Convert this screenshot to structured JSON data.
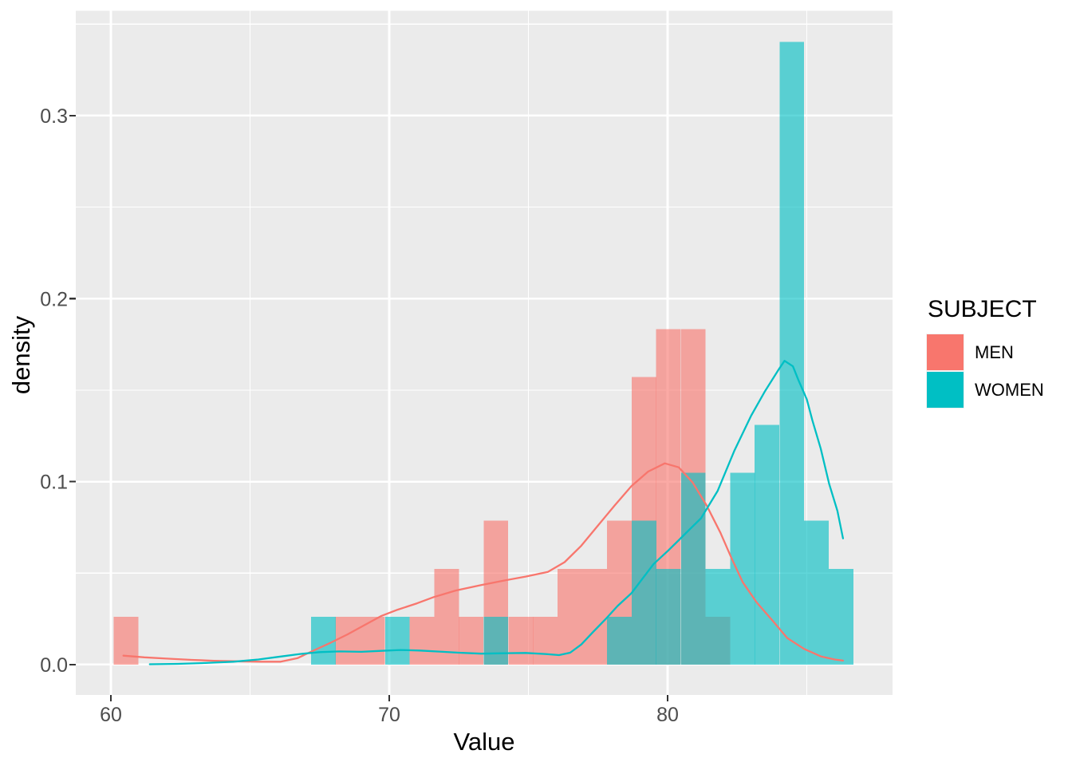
{
  "chart_data": {
    "type": "histogram+density",
    "xlabel": "Value",
    "ylabel": "density",
    "panel": {
      "bg": "#EBEBEB",
      "grid_color": "#FFFFFF",
      "tick_color": "#333333",
      "tick_label_color": "#4D4D4D"
    },
    "x_axis": {
      "range": [
        58.74,
        88.08
      ],
      "ticks": [
        60,
        70,
        80
      ],
      "tick_labels": [
        "60",
        "70",
        "80"
      ],
      "minor_ticks": [
        65,
        75,
        85
      ]
    },
    "y_axis": {
      "range": [
        -0.0166,
        0.3573
      ],
      "ticks": [
        0,
        0.1,
        0.2,
        0.3
      ],
      "tick_labels": [
        "0.0",
        "0.1",
        "0.2",
        "0.3"
      ],
      "minor_ticks": [
        0.05,
        0.15,
        0.25,
        0.35
      ]
    },
    "bin_width": 0.886,
    "fill_alpha": 0.62,
    "series": [
      {
        "name": "MEN",
        "color": "#F8766D",
        "bins": [
          {
            "start": 60.1,
            "height": 0.0262
          },
          {
            "start": 68.07,
            "height": 0.0262
          },
          {
            "start": 68.96,
            "height": 0.0262
          },
          {
            "start": 70.73,
            "height": 0.0262
          },
          {
            "start": 71.62,
            "height": 0.0524
          },
          {
            "start": 72.5,
            "height": 0.0262
          },
          {
            "start": 73.39,
            "height": 0.0786
          },
          {
            "start": 74.28,
            "height": 0.0262
          },
          {
            "start": 75.16,
            "height": 0.0262
          },
          {
            "start": 76.05,
            "height": 0.0524
          },
          {
            "start": 76.93,
            "height": 0.0524
          },
          {
            "start": 77.82,
            "height": 0.0786
          },
          {
            "start": 78.71,
            "height": 0.1572
          },
          {
            "start": 79.59,
            "height": 0.1834
          },
          {
            "start": 80.48,
            "height": 0.1834
          },
          {
            "start": 81.36,
            "height": 0.0262
          }
        ]
      },
      {
        "name": "WOMEN",
        "color": "#00BFC4",
        "bins": [
          {
            "start": 67.19,
            "height": 0.0262
          },
          {
            "start": 69.85,
            "height": 0.0262
          },
          {
            "start": 73.39,
            "height": 0.0262
          },
          {
            "start": 77.82,
            "height": 0.0262
          },
          {
            "start": 78.71,
            "height": 0.0786
          },
          {
            "start": 79.59,
            "height": 0.0524
          },
          {
            "start": 80.48,
            "height": 0.1048
          },
          {
            "start": 81.36,
            "height": 0.0524
          },
          {
            "start": 82.25,
            "height": 0.1048
          },
          {
            "start": 83.13,
            "height": 0.131
          },
          {
            "start": 84.02,
            "height": 0.3404
          },
          {
            "start": 84.9,
            "height": 0.0786
          },
          {
            "start": 85.79,
            "height": 0.0524
          }
        ]
      }
    ],
    "density_curves": [
      {
        "name": "MEN",
        "color": "#F8766D",
        "points": [
          [
            60.45,
            0.0049
          ],
          [
            61.2,
            0.004
          ],
          [
            62.0,
            0.0033
          ],
          [
            62.9,
            0.0026
          ],
          [
            63.7,
            0.0021
          ],
          [
            64.6,
            0.0018
          ],
          [
            65.4,
            0.0016
          ],
          [
            66.1,
            0.0016
          ],
          [
            66.7,
            0.0035
          ],
          [
            67.3,
            0.0078
          ],
          [
            67.9,
            0.012
          ],
          [
            68.5,
            0.0165
          ],
          [
            69.1,
            0.0215
          ],
          [
            69.7,
            0.0265
          ],
          [
            70.3,
            0.03
          ],
          [
            71.0,
            0.0335
          ],
          [
            71.6,
            0.0369
          ],
          [
            72.4,
            0.0405
          ],
          [
            73.3,
            0.0435
          ],
          [
            74.1,
            0.0459
          ],
          [
            74.9,
            0.0481
          ],
          [
            75.7,
            0.0507
          ],
          [
            76.3,
            0.056
          ],
          [
            76.9,
            0.065
          ],
          [
            77.5,
            0.076
          ],
          [
            78.1,
            0.087
          ],
          [
            78.7,
            0.0975
          ],
          [
            79.3,
            0.1055
          ],
          [
            79.9,
            0.11
          ],
          [
            80.4,
            0.1078
          ],
          [
            80.9,
            0.0995
          ],
          [
            81.4,
            0.087
          ],
          [
            81.9,
            0.072
          ],
          [
            82.3,
            0.058
          ],
          [
            82.7,
            0.045
          ],
          [
            83.2,
            0.034
          ],
          [
            83.8,
            0.0235
          ],
          [
            84.3,
            0.0145
          ],
          [
            84.9,
            0.0086
          ],
          [
            85.5,
            0.0045
          ],
          [
            86.0,
            0.0028
          ],
          [
            86.3,
            0.0022
          ]
        ]
      },
      {
        "name": "WOMEN",
        "color": "#00BFC4",
        "points": [
          [
            61.4,
            0.0002
          ],
          [
            62.4,
            0.0004
          ],
          [
            63.4,
            0.0009
          ],
          [
            64.4,
            0.0016
          ],
          [
            65.3,
            0.0028
          ],
          [
            66.1,
            0.0044
          ],
          [
            66.8,
            0.0058
          ],
          [
            67.5,
            0.0068
          ],
          [
            68.2,
            0.0072
          ],
          [
            69.0,
            0.007
          ],
          [
            69.7,
            0.0075
          ],
          [
            70.4,
            0.008
          ],
          [
            71.1,
            0.0077
          ],
          [
            71.8,
            0.0071
          ],
          [
            72.5,
            0.0065
          ],
          [
            73.3,
            0.006
          ],
          [
            74.1,
            0.0062
          ],
          [
            74.9,
            0.0064
          ],
          [
            75.6,
            0.0058
          ],
          [
            76.1,
            0.0052
          ],
          [
            76.5,
            0.0065
          ],
          [
            76.9,
            0.011
          ],
          [
            77.3,
            0.0175
          ],
          [
            77.8,
            0.0253
          ],
          [
            78.2,
            0.032
          ],
          [
            78.7,
            0.039
          ],
          [
            79.1,
            0.047
          ],
          [
            79.5,
            0.055
          ],
          [
            80.0,
            0.062
          ],
          [
            80.4,
            0.068
          ],
          [
            80.8,
            0.074
          ],
          [
            81.2,
            0.08
          ],
          [
            81.8,
            0.095
          ],
          [
            82.4,
            0.117
          ],
          [
            83.0,
            0.136
          ],
          [
            83.5,
            0.1495
          ],
          [
            84.0,
            0.1615
          ],
          [
            84.2,
            0.166
          ],
          [
            84.5,
            0.163
          ],
          [
            84.7,
            0.1555
          ],
          [
            85.0,
            0.145
          ],
          [
            85.2,
            0.1335
          ],
          [
            85.5,
            0.118
          ],
          [
            85.8,
            0.099
          ],
          [
            86.1,
            0.084
          ],
          [
            86.3,
            0.069
          ]
        ]
      }
    ],
    "legend": {
      "title": "SUBJECT",
      "items": [
        {
          "label": "MEN",
          "color": "#F8766D"
        },
        {
          "label": "WOMEN",
          "color": "#00BFC4"
        }
      ]
    }
  }
}
